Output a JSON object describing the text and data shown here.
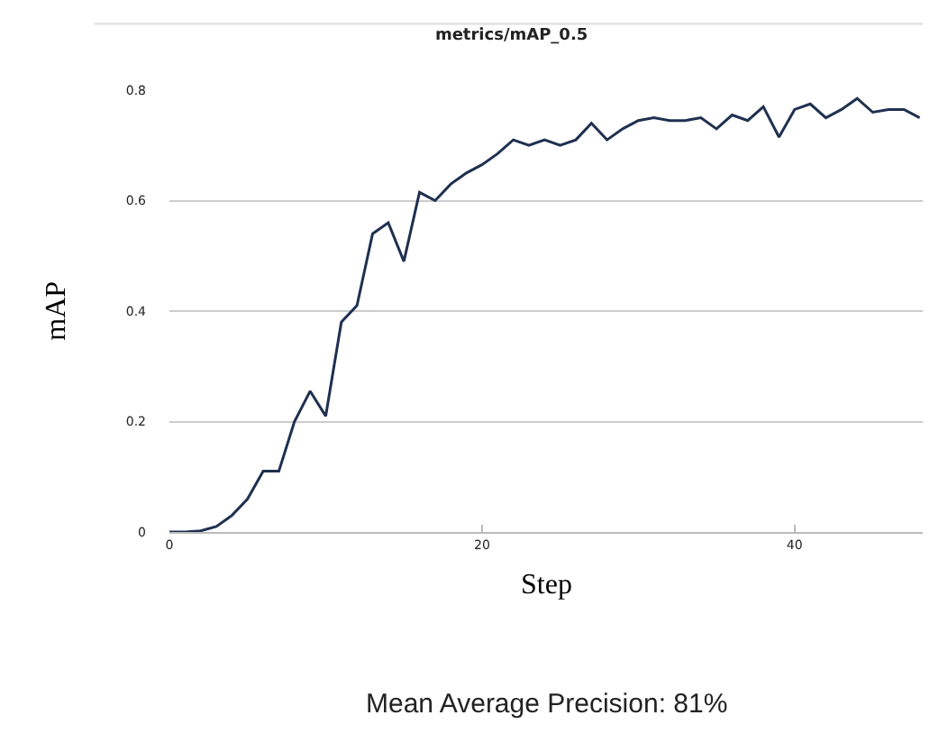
{
  "chart_data": {
    "type": "line",
    "title": "metrics/mAP_0.5",
    "xlabel": "Step",
    "ylabel": "mAP",
    "annotations": [
      "Mean Average Precision: 81%"
    ],
    "x": [
      0,
      1,
      2,
      3,
      4,
      5,
      6,
      7,
      8,
      9,
      10,
      11,
      12,
      13,
      14,
      15,
      16,
      17,
      18,
      19,
      20,
      21,
      22,
      23,
      24,
      25,
      26,
      27,
      28,
      29,
      30,
      31,
      32,
      33,
      34,
      35,
      36,
      37,
      38,
      39,
      40,
      41,
      42,
      43,
      44,
      45,
      46,
      47,
      48
    ],
    "series": [
      {
        "color": "#1f3050",
        "values": [
          0,
          0,
          0.002,
          0.01,
          0.03,
          0.06,
          0.11,
          0.11,
          0.2,
          0.255,
          0.21,
          0.38,
          0.41,
          0.54,
          0.56,
          0.49,
          0.615,
          0.6,
          0.63,
          0.65,
          0.665,
          0.685,
          0.71,
          0.7,
          0.71,
          0.7,
          0.71,
          0.74,
          0.71,
          0.73,
          0.745,
          0.75,
          0.745,
          0.745,
          0.75,
          0.73,
          0.755,
          0.745,
          0.77,
          0.715,
          0.765,
          0.775,
          0.75,
          0.765,
          0.785,
          0.76,
          0.765,
          0.765,
          0.75
        ]
      }
    ],
    "xlim": [
      0,
      48.2
    ],
    "xticks": [
      0,
      20,
      40
    ],
    "ylim": [
      0,
      0.8
    ],
    "yticks": [
      0,
      0.2,
      0.4,
      0.6,
      0.8
    ],
    "grid": "y",
    "marker": "none",
    "line_style": "solid"
  }
}
